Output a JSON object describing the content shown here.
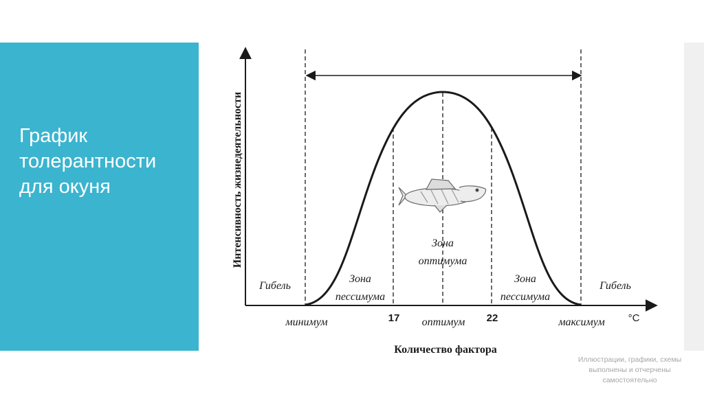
{
  "slide": {
    "title_lines": [
      "График",
      "толерантности",
      "для окуня"
    ],
    "note_lines": [
      "Иллюстрации, графики, схемы",
      "выполнены и отчерчены",
      "самостоятельно"
    ]
  },
  "diagram": {
    "y_axis_label": "Интенсивность жизнедеятельности",
    "x_axis_label": "Количество фактора",
    "unit": "°С",
    "left_death": "Гибель",
    "right_death": "Гибель",
    "left_pessimum": [
      "Зона",
      "пессимума"
    ],
    "right_pessimum": [
      "Зона",
      "пессимума"
    ],
    "optimum_zone": [
      "Зона",
      "оптимума"
    ],
    "x_ticks": {
      "minimum": "минимум",
      "low": "17",
      "optimum": "оптимум",
      "high": "22",
      "maximum": "максимум"
    }
  },
  "colors": {
    "panel": "#3bb4cf",
    "ink": "#1a1a1a"
  }
}
